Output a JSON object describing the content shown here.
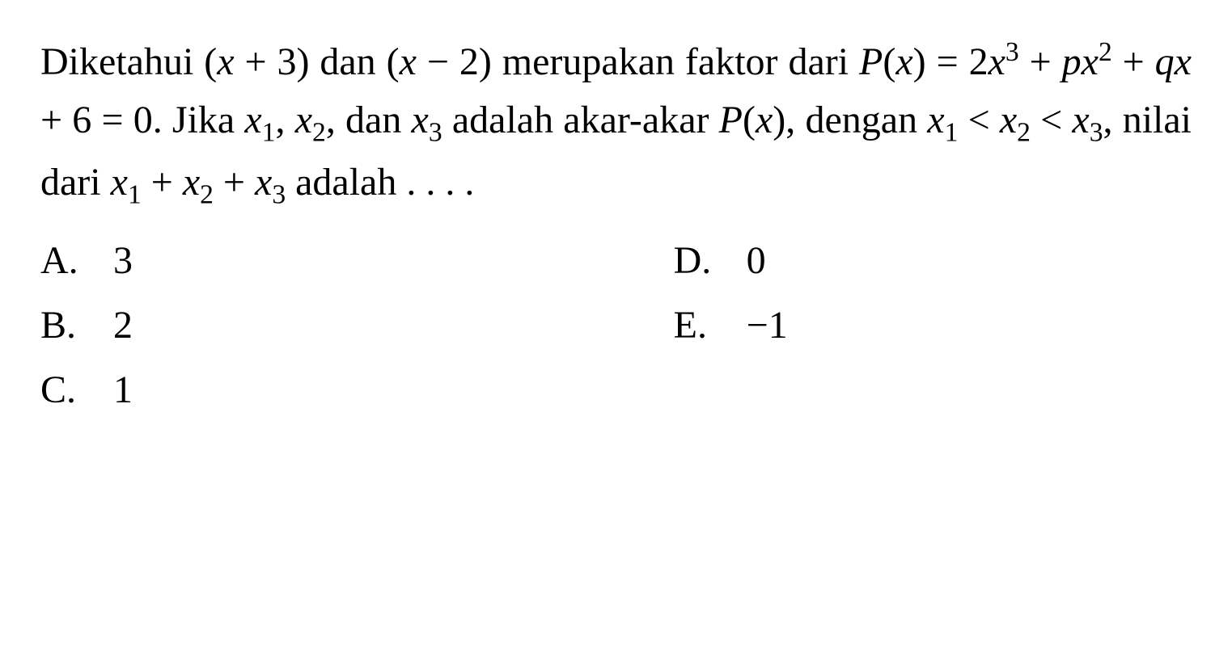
{
  "question": {
    "line_parts": {
      "p1": "Diketahui (",
      "p2": " + 3) dan (",
      "p3": " − 2) merupakan faktor dari ",
      "p4": "(",
      "p5": ") = 2",
      "p6": " + ",
      "p7": " + ",
      "p8": " + 6 = 0. Jika ",
      "p9": ", ",
      "p10": ", dan ",
      "p11": " adalah akar-akar ",
      "p12": "(",
      "p13": "), dengan ",
      "p14": " < ",
      "p15": " < ",
      "p16": ", nilai dari ",
      "p17": " + ",
      "p18": " + ",
      "p19": " adalah . . . ."
    },
    "vars": {
      "x": "x",
      "P": "P",
      "p": "p",
      "q": "q",
      "x1": "x",
      "x2": "x",
      "x3": "x",
      "sub1": "1",
      "sub2": "2",
      "sub3": "3",
      "sup3": "3",
      "sup2": "2"
    }
  },
  "options": {
    "a": {
      "letter": "A.",
      "value": "3"
    },
    "b": {
      "letter": "B.",
      "value": "2"
    },
    "c": {
      "letter": "C.",
      "value": "1"
    },
    "d": {
      "letter": "D.",
      "value": "0"
    },
    "e": {
      "letter": "E.",
      "value": "−1"
    }
  }
}
